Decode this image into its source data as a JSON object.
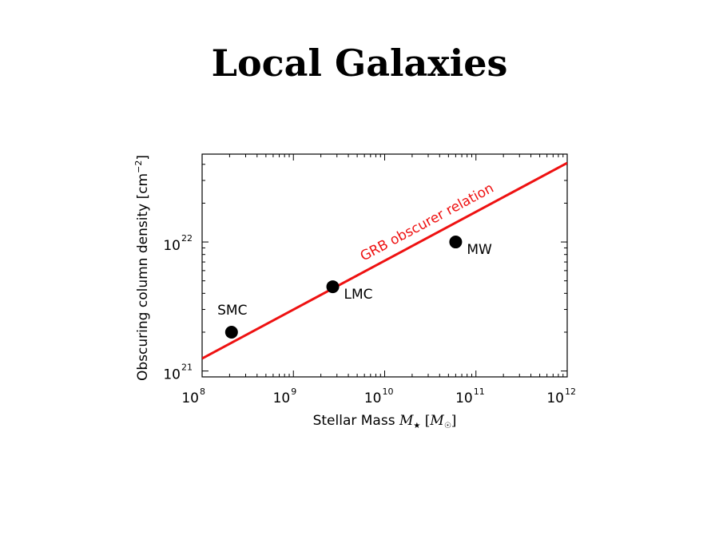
{
  "slide": {
    "title": "Local Galaxies"
  },
  "chart_data": {
    "type": "scatter",
    "xscale": "log",
    "yscale": "log",
    "xlim": [
      100000000.0,
      1000000000000.0
    ],
    "ylim": [
      9e+20,
      4.8e+22
    ],
    "xticks": [
      {
        "base": "10",
        "exp": "8"
      },
      {
        "base": "10",
        "exp": "9"
      },
      {
        "base": "10",
        "exp": "10"
      },
      {
        "base": "10",
        "exp": "11"
      },
      {
        "base": "10",
        "exp": "12"
      }
    ],
    "yticks": [
      {
        "base": "10",
        "exp": "21"
      },
      {
        "base": "10",
        "exp": "22"
      }
    ],
    "xlabel": "Stellar Mass M★ [M☉]",
    "xlabel_parts": {
      "prefix": "Stellar Mass ",
      "m": "M",
      "star": "★",
      "bracket_open": " [",
      "msun": "M",
      "sun": "☉",
      "bracket_close": "]"
    },
    "ylabel": "Obscuring column density [cm⁻²]",
    "ylabel_parts": {
      "prefix": "Obscuring column density [cm",
      "exp": "−2",
      "suffix": "]"
    },
    "points": [
      {
        "name": "SMC",
        "x": 210000000.0,
        "y": 2e+21,
        "label_pos": "above"
      },
      {
        "name": "LMC",
        "x": 2700000000.0,
        "y": 4.5e+21,
        "label_pos": "right"
      },
      {
        "name": "MW",
        "x": 60000000000.0,
        "y": 1e+22,
        "label_pos": "right"
      }
    ],
    "relation": {
      "name": "GRB obscurer relation",
      "x": [
        100000000.0,
        1000000000000.0
      ],
      "y": [
        1.25e+21,
        4.1e+22
      ],
      "color": "#ee1111"
    },
    "grid": false,
    "marker_color": "#000000"
  }
}
